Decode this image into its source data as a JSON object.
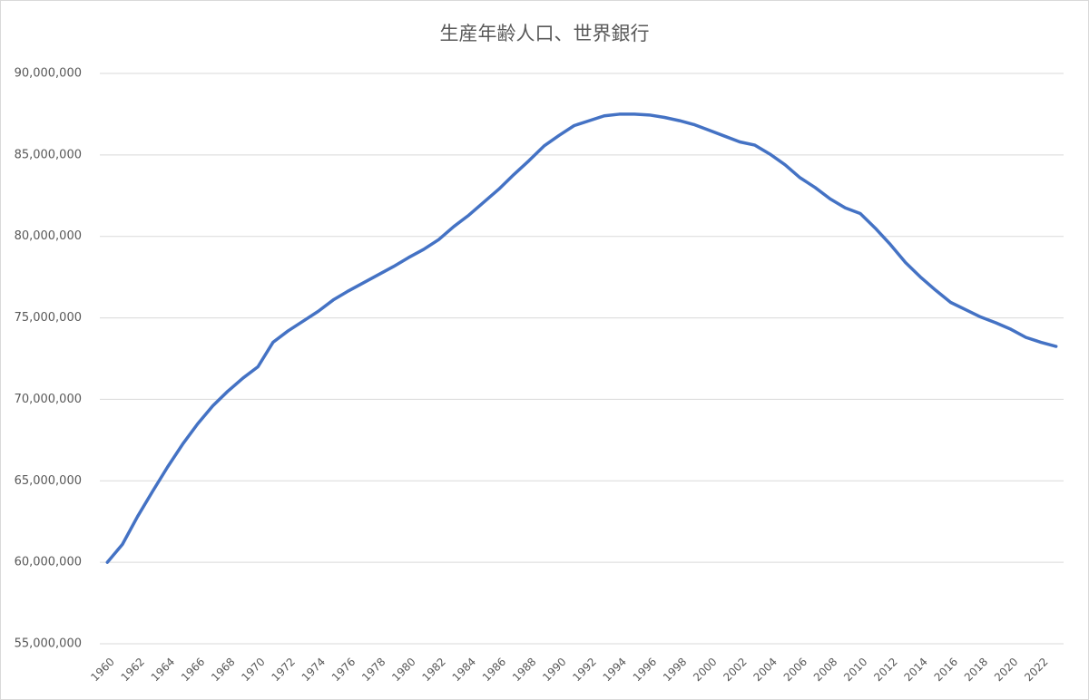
{
  "chart_data": {
    "type": "line",
    "title": "生産年齢人口、世界銀行",
    "x": [
      1960,
      1961,
      1962,
      1963,
      1964,
      1965,
      1966,
      1967,
      1968,
      1969,
      1970,
      1971,
      1972,
      1973,
      1974,
      1975,
      1976,
      1977,
      1978,
      1979,
      1980,
      1981,
      1982,
      1983,
      1984,
      1985,
      1986,
      1987,
      1988,
      1989,
      1990,
      1991,
      1992,
      1993,
      1994,
      1995,
      1996,
      1997,
      1998,
      1999,
      2000,
      2001,
      2002,
      2003,
      2004,
      2005,
      2006,
      2007,
      2008,
      2009,
      2010,
      2011,
      2012,
      2013,
      2014,
      2015,
      2016,
      2017,
      2018,
      2019,
      2020,
      2021,
      2022,
      2023
    ],
    "values": [
      60000000,
      61100000,
      62800000,
      64350000,
      65850000,
      67250000,
      68500000,
      69600000,
      70500000,
      71300000,
      72000000,
      73500000,
      74200000,
      74800000,
      75400000,
      76100000,
      76650000,
      77150000,
      77650000,
      78150000,
      78700000,
      79200000,
      79800000,
      80600000,
      81300000,
      82100000,
      82900000,
      83800000,
      84650000,
      85550000,
      86200000,
      86800000,
      87100000,
      87400000,
      87500000,
      87500000,
      87450000,
      87300000,
      87100000,
      86850000,
      86500000,
      86150000,
      85800000,
      85600000,
      85050000,
      84400000,
      83600000,
      83000000,
      82300000,
      81750000,
      81400000,
      80500000,
      79500000,
      78400000,
      77500000,
      76700000,
      75950000,
      75500000,
      75050000,
      74700000,
      74300000,
      73800000,
      73500000,
      73250000
    ],
    "color": "#4472c4",
    "xlim": [
      1959.5,
      2023.5
    ],
    "xticks": [
      1960,
      1962,
      1964,
      1966,
      1968,
      1970,
      1972,
      1974,
      1976,
      1978,
      1980,
      1982,
      1984,
      1986,
      1988,
      1990,
      1992,
      1994,
      1996,
      1998,
      2000,
      2002,
      2004,
      2006,
      2008,
      2010,
      2012,
      2014,
      2016,
      2018,
      2020,
      2022
    ],
    "ylim": [
      55000000,
      90000000
    ],
    "yticks": [
      {
        "value": 55000000,
        "label": "55,000,000"
      },
      {
        "value": 60000000,
        "label": "60,000,000"
      },
      {
        "value": 65000000,
        "label": "65,000,000"
      },
      {
        "value": 70000000,
        "label": "70,000,000"
      },
      {
        "value": 75000000,
        "label": "75,000,000"
      },
      {
        "value": 80000000,
        "label": "80,000,000"
      },
      {
        "value": 85000000,
        "label": "85,000,000"
      },
      {
        "value": 90000000,
        "label": "90,000,000"
      }
    ],
    "grid": true
  }
}
